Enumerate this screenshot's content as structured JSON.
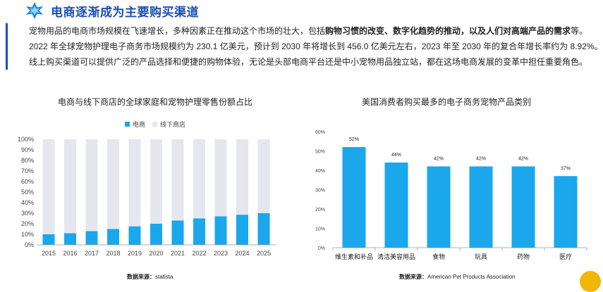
{
  "header": {
    "icon": "star-icon",
    "title": "电商逐渐成为主要购买渠道"
  },
  "paragraph": {
    "line1_pre": "宠物用品的电商市场规模在飞速增长，多种因素正在推动这个市场的壮大，包括",
    "line1_bold": "购物习惯的改变、数字化趋势的推动，以及人们对高端产品的需求",
    "line1_post": "等。",
    "line2": "2022 年全球宠物护理电子商务市场规模约为 230.1 亿美元，预计到 2030 年将增长到 456.0 亿美元左右，2023 年至 2030 年的复合年增长率约为 8.92%。",
    "line3": "线上购买渠道可以提供广泛的产品选择和便捷的购物体验，无论是头部电商平台还是中小宠物用品独立站，都在这场电商发展的变革中担任重要角色。"
  },
  "colors": {
    "brand": "#1b4fb5",
    "ecommerce": "#1aa7ec",
    "offline": "#e6e6ef"
  },
  "chart_data": [
    {
      "type": "bar",
      "stacked": true,
      "title": "电商与线下商店的全球家庭和宠物护理零售份额占比",
      "categories": [
        "2015",
        "2016",
        "2017",
        "2018",
        "2019",
        "2020",
        "2021",
        "2022",
        "2023",
        "2024",
        "2025"
      ],
      "series": [
        {
          "name": "电商",
          "values": [
            10,
            11,
            13,
            15,
            17.5,
            20,
            23,
            25,
            27,
            28.5,
            30
          ]
        },
        {
          "name": "线下商店",
          "values": [
            90,
            89,
            87,
            85,
            82.5,
            80,
            77,
            75,
            73,
            71.5,
            70
          ]
        }
      ],
      "y_ticks": [
        "0%",
        "10%",
        "20%",
        "30%",
        "40%",
        "50%",
        "60%",
        "70%",
        "80%",
        "90%",
        "100%"
      ],
      "ylim": [
        0,
        100
      ],
      "legend_position": "top-left",
      "source_label": "数据来源：",
      "source": "statista"
    },
    {
      "type": "bar",
      "title": "美国消费者购买最多的电子商务宠物产品类别",
      "categories": [
        "维生素和补品",
        "清洁美容用品",
        "食物",
        "玩具",
        "药物",
        "医疗"
      ],
      "values": [
        52,
        44,
        42,
        42,
        42,
        37
      ],
      "value_labels": [
        "52%",
        "44%",
        "42%",
        "42%",
        "42%",
        "37%"
      ],
      "y_ticks": [
        "0%",
        "10%",
        "20%",
        "30%",
        "40%",
        "50%",
        "60%"
      ],
      "ylim": [
        0,
        60
      ],
      "source_label": "数据来源：",
      "source": "American Pet Products Association"
    }
  ]
}
